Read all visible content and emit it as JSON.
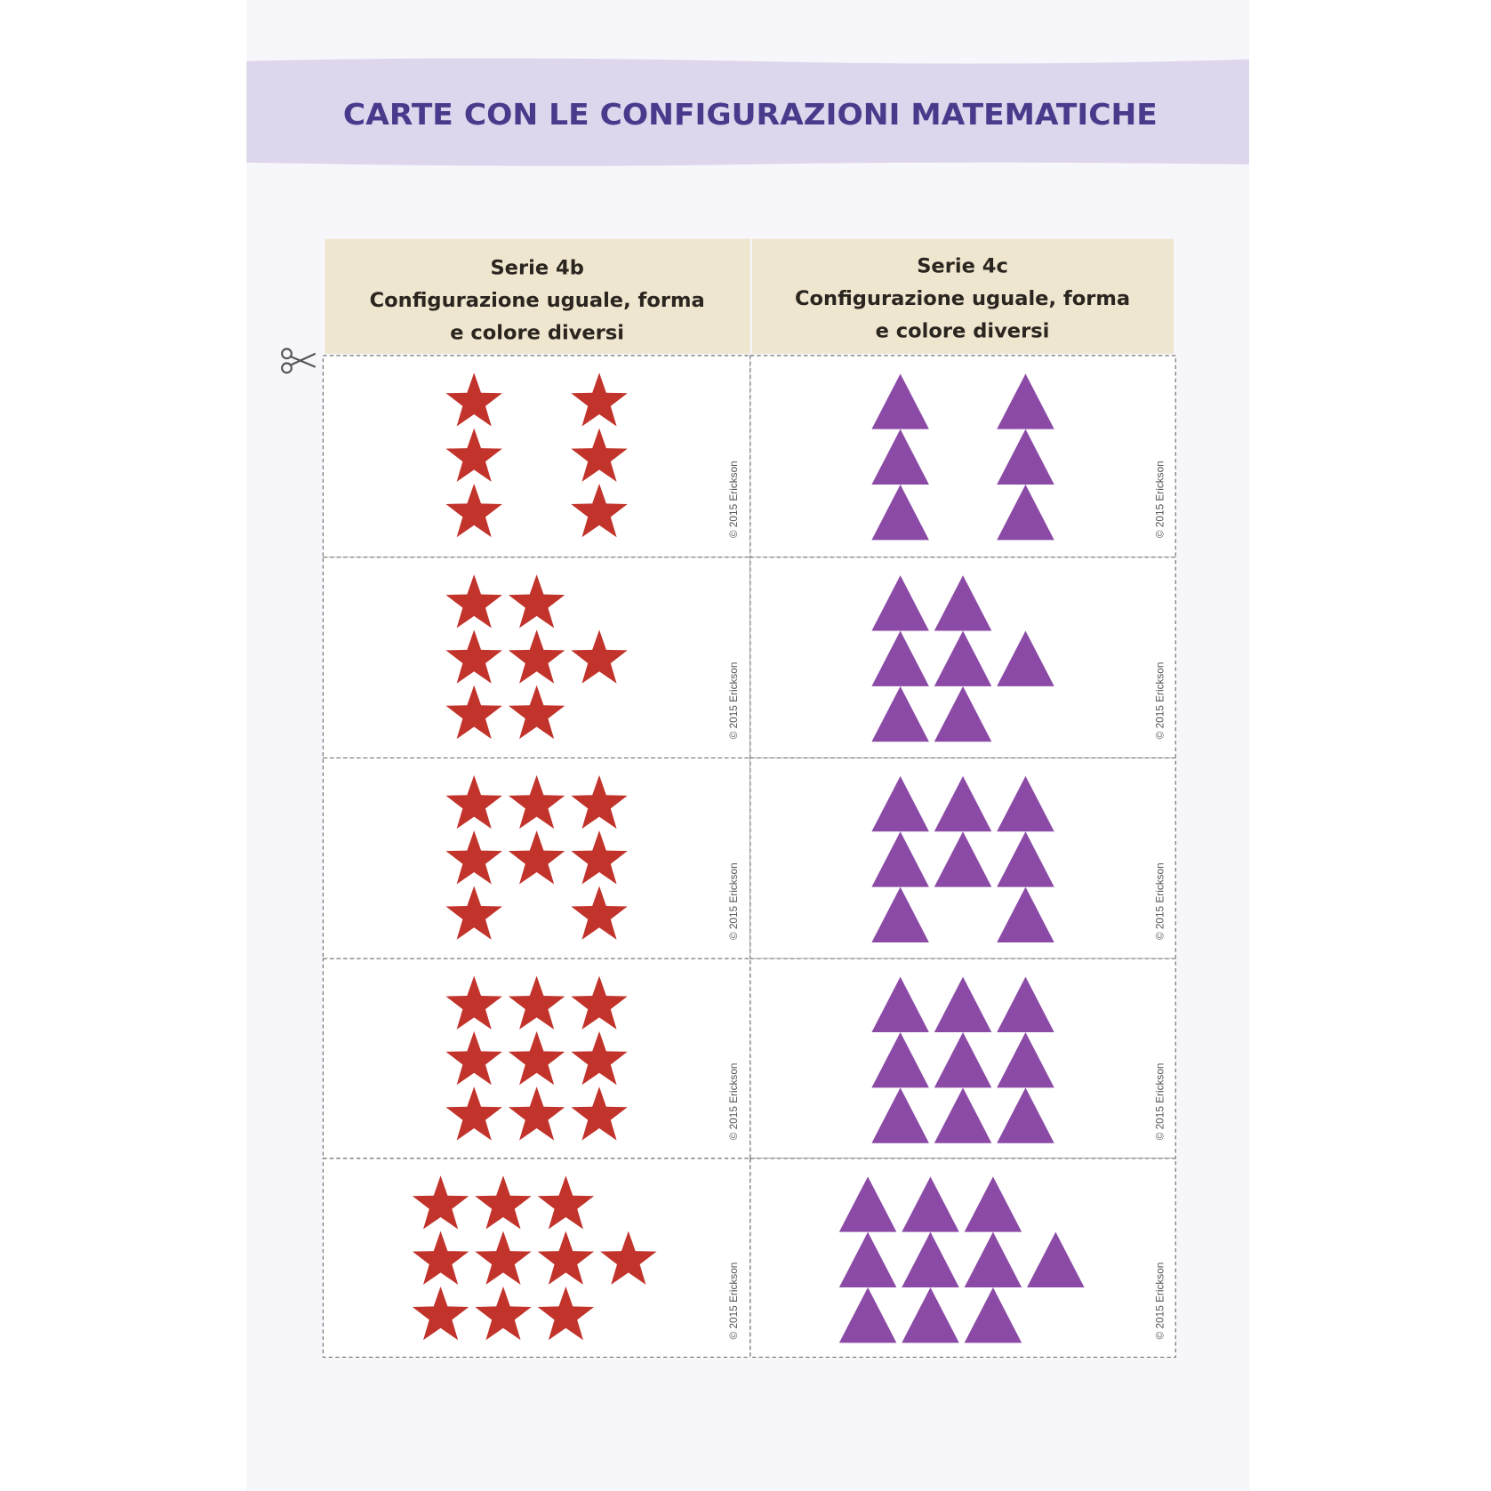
{
  "header": {
    "title": "CARTE CON LE CONFIGURAZIONI MATEMATICHE"
  },
  "table": {
    "columns": [
      {
        "lines": [
          "Serie 4b",
          "Configurazione uguale, forma",
          "e colore diversi"
        ]
      },
      {
        "lines": [
          "Serie 4c",
          "Configurazione uguale, forma",
          "e colore diversi"
        ]
      }
    ],
    "copyright": "© 2015 Erickson"
  }
}
